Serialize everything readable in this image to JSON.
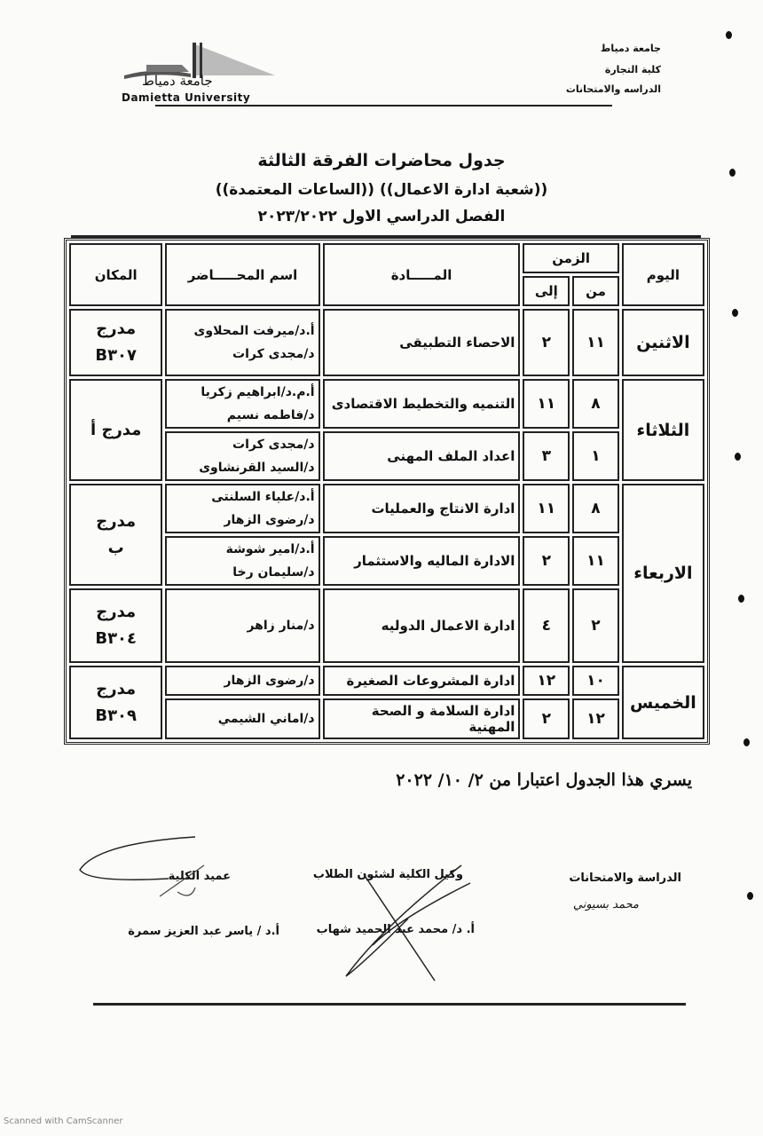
{
  "header": {
    "logo_ar": "جامعة دمياط",
    "logo_en": "Damietta University",
    "right_lines": [
      "جامعة دمياط",
      "كلية التجارة",
      "الدراسه والامتحانات"
    ]
  },
  "title": {
    "line1": "جدول محاضرات الفرقة الثالثة",
    "line2": "((شعبة ادارة الاعمال)) ((الساعات المعتمدة))",
    "line3": "الفصل الدراسي الاول ٢٠٢٣/٢٠٢٢"
  },
  "table": {
    "headers": {
      "day": "اليوم",
      "time": "الزمن",
      "from": "من",
      "to": "إلى",
      "subject": "المـــــادة",
      "lecturer": "اسم المحـــــاضر",
      "place": "المكان"
    },
    "days": [
      {
        "day": "الاثنين",
        "place": [
          "مدرج",
          "B٣٠٧"
        ],
        "rows": [
          {
            "from": "١١",
            "to": "٢",
            "subject": "الاحصاء التطبيقى",
            "lecturers": [
              "أ.د/ميرفت المحلاوى",
              "د/مجدى كرات"
            ]
          }
        ]
      },
      {
        "day": "الثلاثاء",
        "place": [
          "مدرج أ"
        ],
        "rows": [
          {
            "from": "٨",
            "to": "١١",
            "subject": "التنميه والتخطيط الاقتصادى",
            "lecturers": [
              "أ.م.د/ابراهيم زكريا",
              "د/فاطمه نسيم"
            ]
          },
          {
            "from": "١",
            "to": "٣",
            "subject": "اعداد الملف المهنى",
            "lecturers": [
              "د/مجدى كرات",
              "د/السيد القرنشاوى"
            ]
          }
        ]
      },
      {
        "day": "الاربعاء",
        "places": [
          [
            "مدرج",
            "ب"
          ],
          [
            "مدرج",
            "B٣٠٤"
          ]
        ],
        "rows": [
          {
            "from": "٨",
            "to": "١١",
            "subject": "ادارة الانتاج والعمليات",
            "lecturers": [
              "أ.د/علياء السلنتى",
              "د/رضوى الزهار"
            ]
          },
          {
            "from": "١١",
            "to": "٢",
            "subject": "الادارة الماليه والاستثمار",
            "lecturers": [
              "أ.د/امير شوشة",
              "د/سليمان رخا"
            ]
          },
          {
            "from": "٢",
            "to": "٤",
            "subject": "ادارة الاعمال الدوليه",
            "lecturers": [
              "د/منار زاهر"
            ]
          }
        ]
      },
      {
        "day": "الخميس",
        "place": [
          "مدرج",
          "B٣٠٩"
        ],
        "rows": [
          {
            "from": "١٠",
            "to": "١٢",
            "subject": "ادارة المشروعات الصغيرة",
            "lecturers": [
              "د/رضوى الزهار"
            ]
          },
          {
            "from": "١٢",
            "to": "٢",
            "subject": "ادارة السلامة و الصحة المهنية",
            "lecturers": [
              "د/اماني الشيمي"
            ]
          }
        ]
      }
    ]
  },
  "effective": "يسري هذا الجدول اعتبارا من ٢/ ١٠/ ٢٠٢٢",
  "signatures": {
    "exams": {
      "title": "الدراسة والامتحانات",
      "name": "محمد بسيوني"
    },
    "vice_dean": {
      "title": "وكيل الكلية لشئون الطلاب",
      "name": "أ. د/ محمد عبد الحميد شهاب"
    },
    "dean": {
      "title": "عميد الكلية",
      "name": "أ.د / ياسر عبد العزيز سمرة"
    }
  },
  "scanner_mark": "Scanned with CamScanner"
}
